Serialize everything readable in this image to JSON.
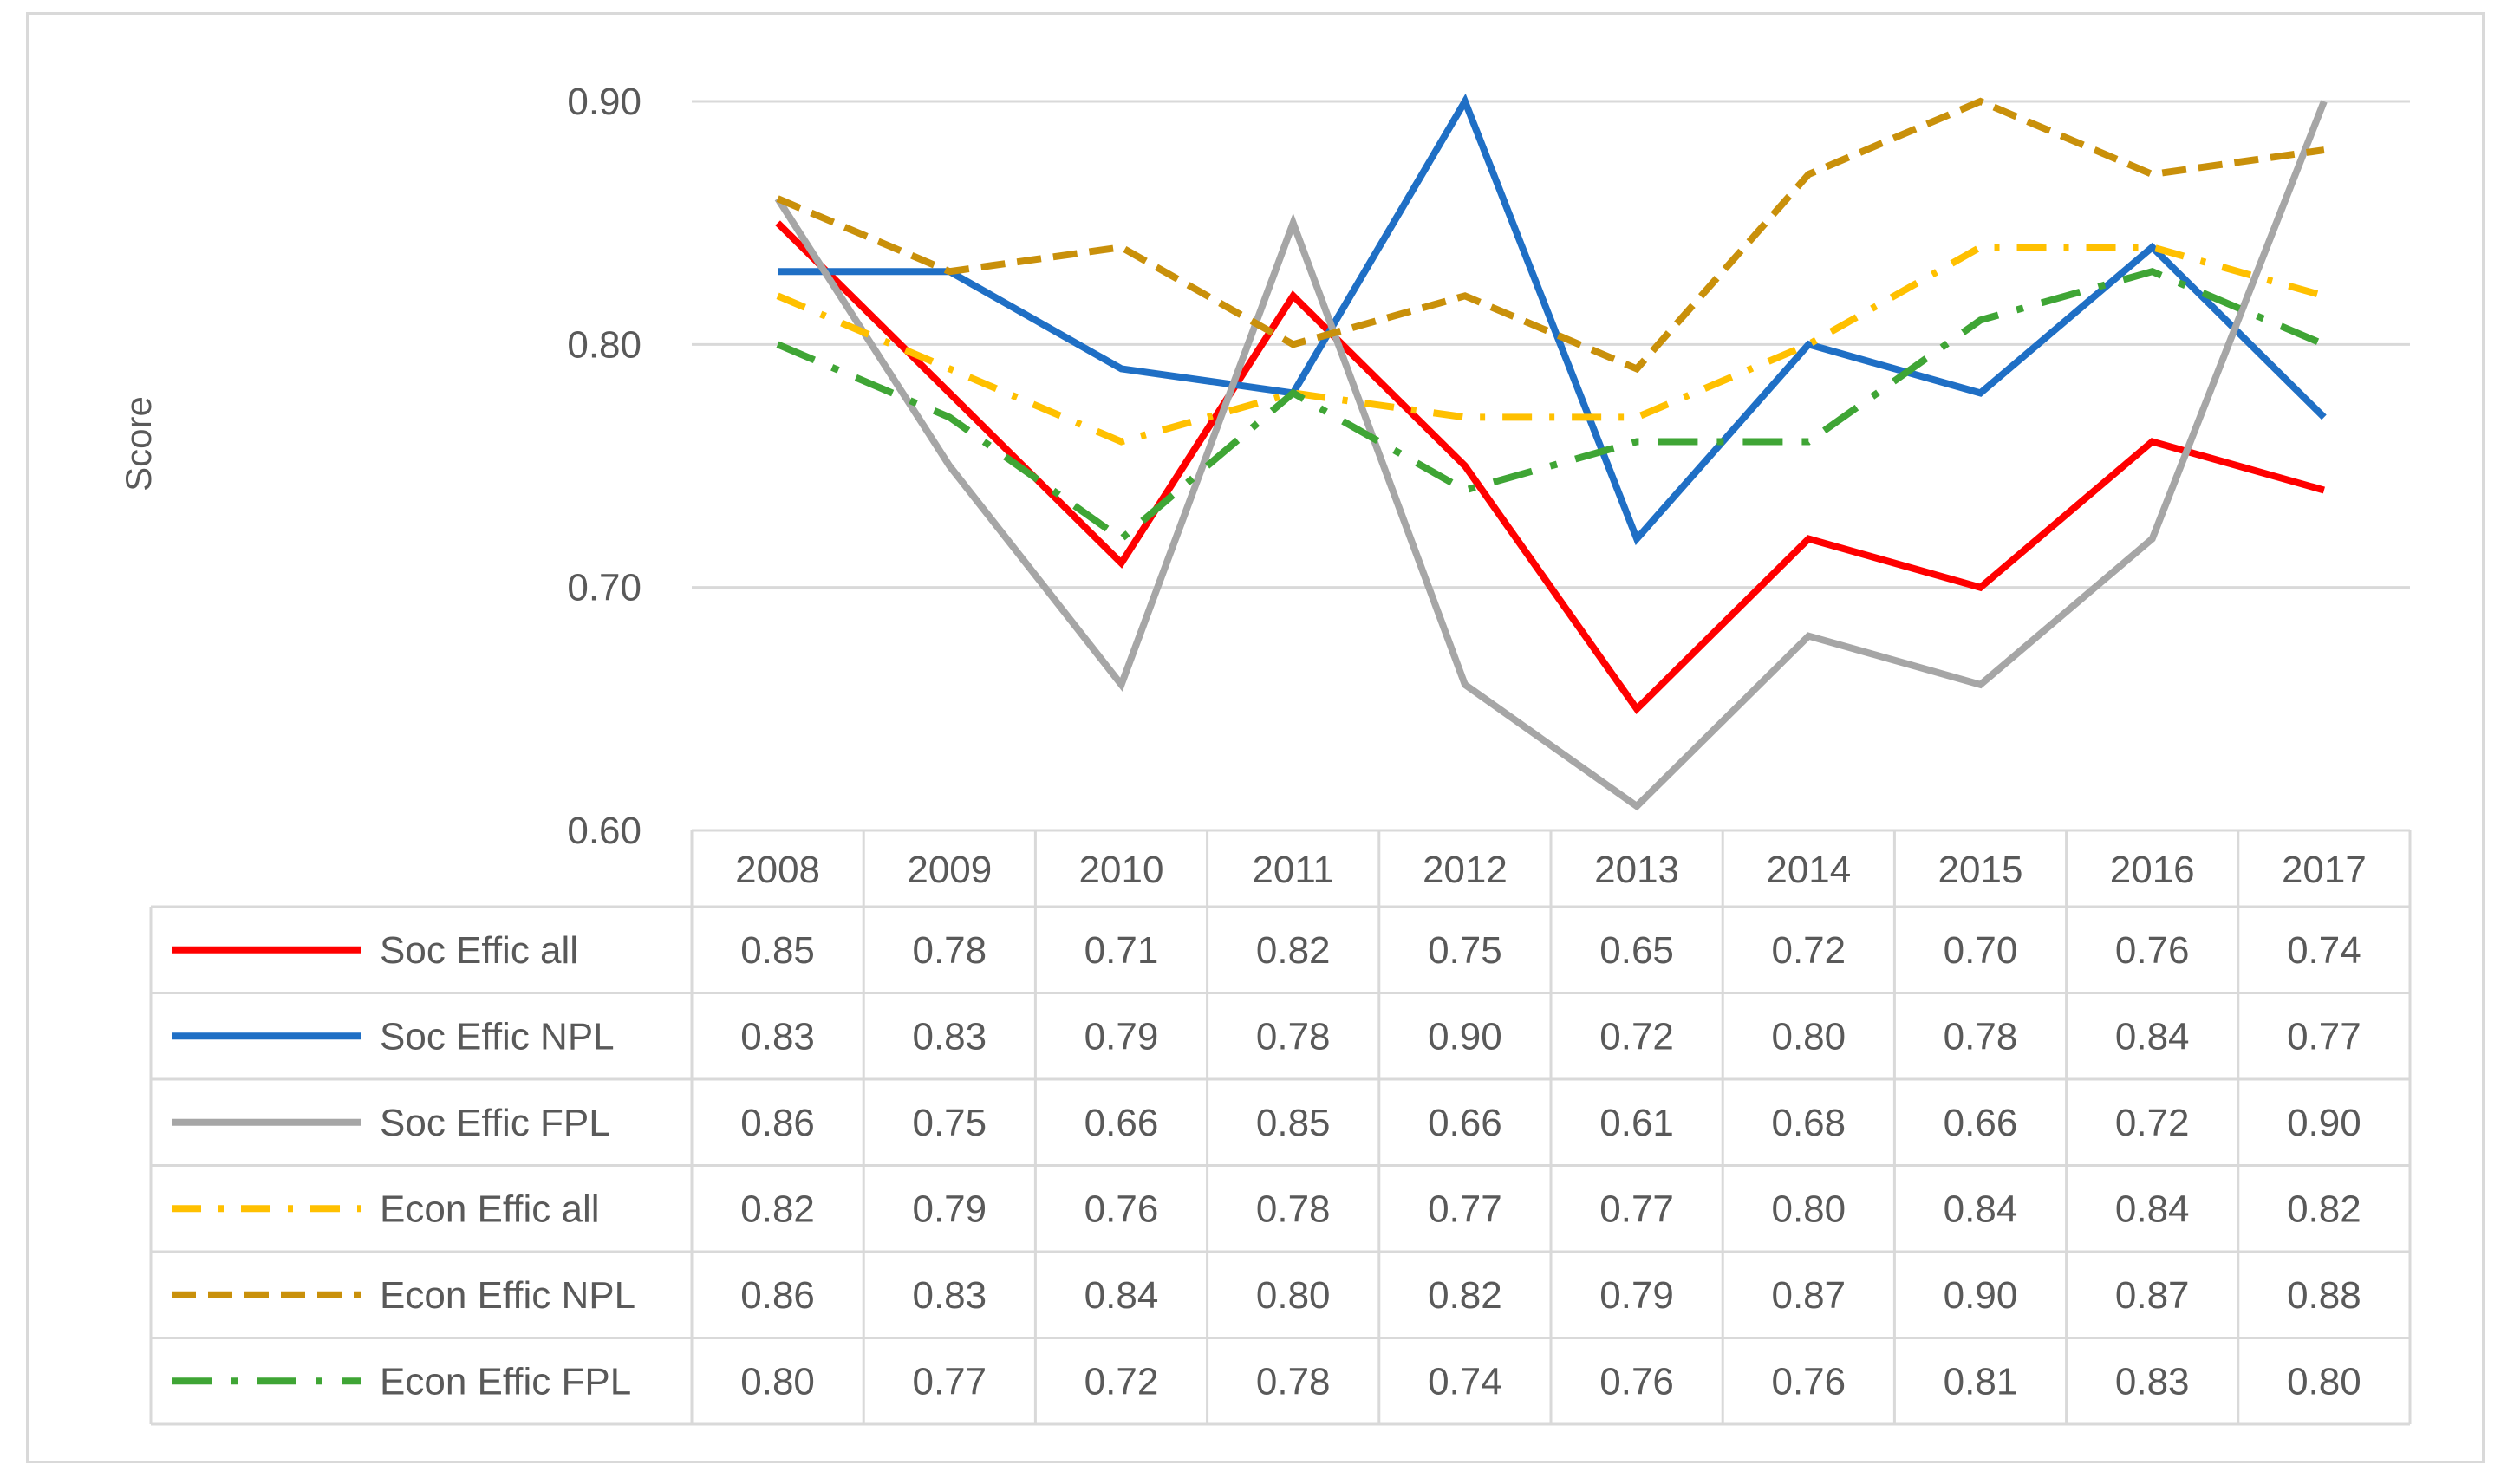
{
  "chart_data": {
    "type": "line",
    "title": "",
    "xlabel": "",
    "ylabel": "Score",
    "ylim": [
      0.6,
      0.9
    ],
    "yticks": [
      "0.60",
      "0.70",
      "0.80",
      "0.90"
    ],
    "grid": true,
    "legend": "data-table",
    "categories": [
      "2008",
      "2009",
      "2010",
      "2011",
      "2012",
      "2013",
      "2014",
      "2015",
      "2016",
      "2017"
    ],
    "series": [
      {
        "name": "Soc Effic all",
        "color": "#ff0000",
        "style": "solid",
        "values": [
          0.85,
          0.78,
          0.71,
          0.82,
          0.75,
          0.65,
          0.72,
          0.7,
          0.76,
          0.74
        ],
        "labels": [
          "0.85",
          "0.78",
          "0.71",
          "0.82",
          "0.75",
          "0.65",
          "0.72",
          "0.70",
          "0.76",
          "0.74"
        ]
      },
      {
        "name": "Soc Effic NPL",
        "color": "#1f6fc5",
        "style": "solid",
        "values": [
          0.83,
          0.83,
          0.79,
          0.78,
          0.9,
          0.72,
          0.8,
          0.78,
          0.84,
          0.77
        ],
        "labels": [
          "0.83",
          "0.83",
          "0.79",
          "0.78",
          "0.90",
          "0.72",
          "0.80",
          "0.78",
          "0.84",
          "0.77"
        ]
      },
      {
        "name": "Soc Effic FPL",
        "color": "#a6a6a6",
        "style": "solid",
        "values": [
          0.86,
          0.75,
          0.66,
          0.85,
          0.66,
          0.61,
          0.68,
          0.66,
          0.72,
          0.9
        ],
        "labels": [
          "0.86",
          "0.75",
          "0.66",
          "0.85",
          "0.66",
          "0.61",
          "0.68",
          "0.66",
          "0.72",
          "0.90"
        ]
      },
      {
        "name": "Econ Effic all",
        "color": "#ffc000",
        "style": "dashdot",
        "values": [
          0.82,
          0.79,
          0.76,
          0.78,
          0.77,
          0.77,
          0.8,
          0.84,
          0.84,
          0.82
        ],
        "labels": [
          "0.82",
          "0.79",
          "0.76",
          "0.78",
          "0.77",
          "0.77",
          "0.80",
          "0.84",
          "0.84",
          "0.82"
        ]
      },
      {
        "name": "Econ Effic NPL",
        "color": "#c9900a",
        "style": "dashed",
        "values": [
          0.86,
          0.83,
          0.84,
          0.8,
          0.82,
          0.79,
          0.87,
          0.9,
          0.87,
          0.88
        ],
        "labels": [
          "0.86",
          "0.83",
          "0.84",
          "0.80",
          "0.82",
          "0.79",
          "0.87",
          "0.90",
          "0.87",
          "0.88"
        ]
      },
      {
        "name": "Econ Effic FPL",
        "color": "#3fa535",
        "style": "longdashdot",
        "values": [
          0.8,
          0.77,
          0.72,
          0.78,
          0.74,
          0.76,
          0.76,
          0.81,
          0.83,
          0.8
        ],
        "labels": [
          "0.80",
          "0.77",
          "0.72",
          "0.78",
          "0.74",
          "0.76",
          "0.76",
          "0.81",
          "0.83",
          "0.80"
        ]
      }
    ]
  }
}
